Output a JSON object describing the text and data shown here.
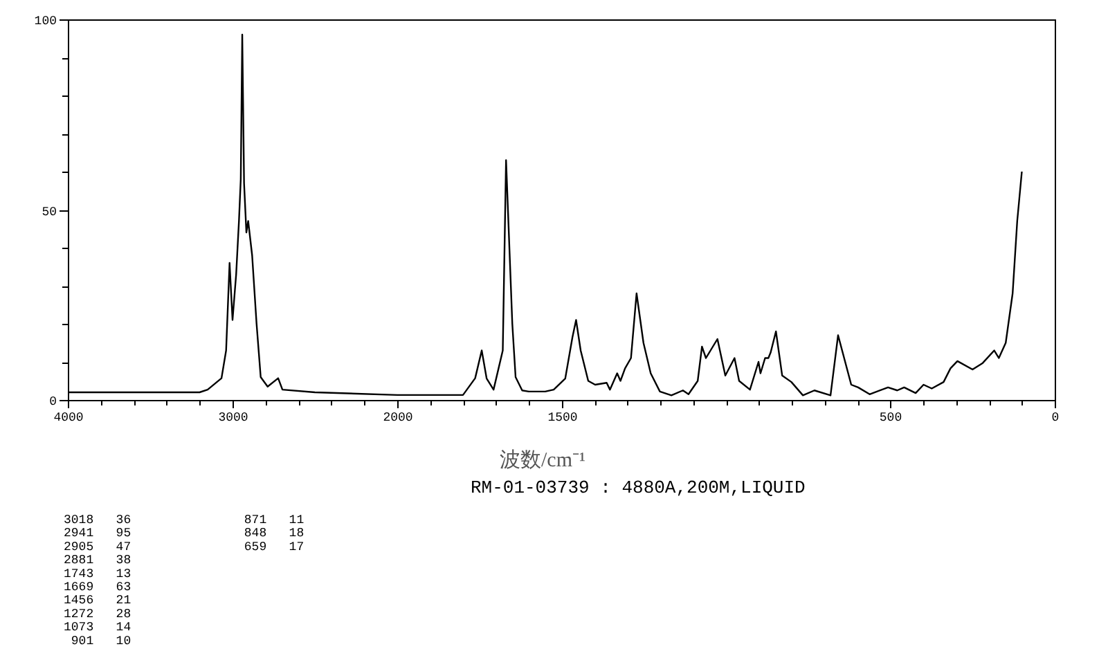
{
  "chart_data": [
    {
      "type": "line",
      "grid": false,
      "marker": "none",
      "line_style": "solid",
      "xlim": [
        4000,
        2000
      ],
      "xticks": [
        4000,
        {
          "value": 3800,
          "label": null
        },
        {
          "value": 3600,
          "label": null
        },
        {
          "value": 3400,
          "label": null
        },
        {
          "value": 3200,
          "label": null
        },
        3000,
        {
          "value": 2800,
          "label": null
        },
        {
          "value": 2600,
          "label": null
        },
        {
          "value": 2400,
          "label": null
        },
        {
          "value": 2200,
          "label": null
        },
        2000
      ],
      "ylim": [
        0,
        100
      ],
      "yticks": [
        0,
        {
          "value": 10,
          "label": null
        },
        {
          "value": 20,
          "label": null
        },
        {
          "value": 30,
          "label": null
        },
        {
          "value": 40,
          "label": null
        },
        50,
        {
          "value": 60,
          "label": null
        },
        {
          "value": 70,
          "label": null
        },
        {
          "value": 80,
          "label": null
        },
        {
          "value": 90,
          "label": null
        },
        100
      ],
      "series": [
        {
          "color": "#000000",
          "x": [
            4000,
            3600,
            3200,
            3151,
            3067,
            3039,
            3018,
            3000,
            2978,
            2961,
            2950,
            2941,
            2930,
            2916,
            2905,
            2881,
            2854,
            2829,
            2787,
            2723,
            2697,
            2500,
            2000
          ],
          "values": [
            2,
            2,
            2,
            2.7,
            5.7,
            13,
            36,
            21,
            33,
            47,
            58,
            96,
            57,
            44,
            47,
            38,
            20,
            6,
            3.5,
            5.7,
            2.7,
            2,
            1.3
          ]
        }
      ],
      "annotations": [
        "RM-01-03739 : 4880A,200M,LIQUID",
        "3018   36",
        "2941   95",
        "2905   47",
        "2881   38",
        "1743   13",
        "1669   63",
        "1456   21",
        "1272   28",
        "1073   14",
        " 901   10",
        " 871   11",
        " 848   18",
        " 659   17"
      ]
    },
    {
      "type": "line",
      "xlabel": "波数/cm⁻¹",
      "grid": false,
      "marker": "none",
      "line_style": "solid",
      "tick_labels": "x",
      "xlim": [
        2000,
        0
      ],
      "xticks": [
        {
          "value": 2000,
          "label": null
        },
        {
          "value": 1900,
          "label": null
        },
        {
          "value": 1800,
          "label": null
        },
        {
          "value": 1700,
          "label": null
        },
        {
          "value": 1600,
          "label": null
        },
        1500,
        {
          "value": 1400,
          "label": null
        },
        {
          "value": 1300,
          "label": null
        },
        {
          "value": 1200,
          "label": null
        },
        {
          "value": 1100,
          "label": null
        },
        {
          "value": 1000,
          "label": null
        },
        {
          "value": 900,
          "label": null
        },
        {
          "value": 800,
          "label": null
        },
        {
          "value": 700,
          "label": null
        },
        {
          "value": 600,
          "label": null
        },
        500,
        {
          "value": 400,
          "label": null
        },
        {
          "value": 300,
          "label": null
        },
        {
          "value": 200,
          "label": null
        },
        {
          "value": 100,
          "label": null
        },
        0
      ],
      "ylim": [
        0,
        100
      ],
      "series": [
        {
          "color": "#000000",
          "x": [
            2000,
            1800,
            1763,
            1743,
            1728,
            1707,
            1679,
            1669,
            1650,
            1640,
            1620,
            1600,
            1550,
            1524,
            1489,
            1467,
            1456,
            1442,
            1419,
            1398,
            1363,
            1353,
            1331,
            1321,
            1307,
            1289,
            1272,
            1251,
            1229,
            1201,
            1166,
            1131,
            1114,
            1086,
            1073,
            1061,
            1047,
            1026,
            1002,
            974,
            960,
            927,
            901,
            895,
            881,
            871,
            864,
            848,
            829,
            801,
            766,
            731,
            682,
            659,
            619,
            598,
            563,
            507,
            479,
            458,
            423,
            399,
            374,
            338,
            317,
            296,
            250,
            219,
            184,
            170,
            149,
            128,
            114,
            100
          ],
          "values": [
            1.3,
            1.3,
            5.7,
            13,
            5.6,
            2.7,
            13,
            63,
            20,
            6,
            2.5,
            2.2,
            2.2,
            2.7,
            5.6,
            16.5,
            21,
            13,
            5,
            4,
            4.5,
            2.7,
            7,
            5,
            8.3,
            11,
            28,
            15,
            7,
            2.2,
            1.2,
            2.5,
            1.5,
            5,
            14,
            11,
            13,
            16,
            6.4,
            11,
            5,
            2.7,
            10,
            7,
            11,
            11,
            12.5,
            18,
            6.4,
            4.7,
            1.2,
            2.5,
            1.2,
            17,
            4,
            3.3,
            1.5,
            3.3,
            2.5,
            3.3,
            1.8,
            4,
            3,
            4.7,
            8.3,
            10.2,
            8,
            9.7,
            13,
            11,
            15,
            28,
            47,
            60
          ]
        }
      ]
    }
  ]
}
